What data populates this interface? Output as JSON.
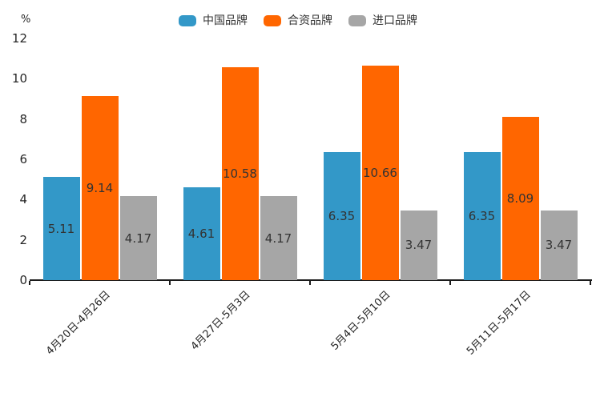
{
  "chart_data": {
    "type": "bar",
    "title": "",
    "ylabel": "%",
    "ylim": [
      0,
      12
    ],
    "yticks": [
      0,
      2,
      4,
      6,
      8,
      10,
      12
    ],
    "grid": false,
    "legend_position": "top-center",
    "value_labels_shown": true,
    "categories": [
      "4月20日-4月26日",
      "4月27日-5月3日",
      "5月4日-5月10日",
      "5月11日-5月17日"
    ],
    "series": [
      {
        "name": "中国品牌",
        "color": "#3398c8",
        "values": [
          5.11,
          4.61,
          6.35,
          6.35
        ]
      },
      {
        "name": "合资品牌",
        "color": "#ff6600",
        "values": [
          9.14,
          10.58,
          10.66,
          8.09
        ]
      },
      {
        "name": "进口品牌",
        "color": "#a6a6a6",
        "values": [
          4.17,
          4.17,
          3.47,
          3.47
        ]
      }
    ]
  },
  "colors": {
    "axis": "#1a1a1a",
    "tick_label": "#262626",
    "value_label": "#333333",
    "background": "#ffffff"
  }
}
